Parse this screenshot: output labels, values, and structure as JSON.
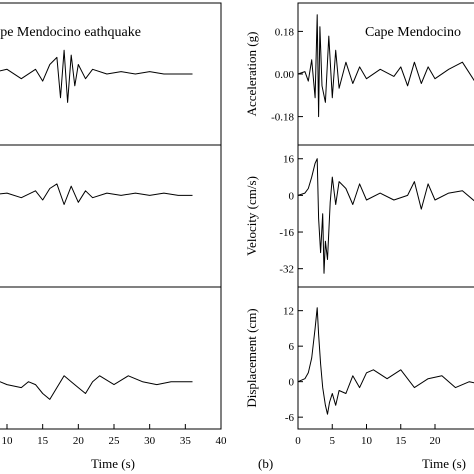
{
  "figure": {
    "panel_b_label": "(b)"
  },
  "chart_data": [
    {
      "id": "left_acceleration",
      "type": "line",
      "title": "ape Mendocino eathquake",
      "xlabel": "",
      "ylabel": "",
      "xlim": [
        7,
        40
      ],
      "ylim": [
        -0.3,
        0.3
      ],
      "yticks": [],
      "xticks": [],
      "series": [
        {
          "x": [
            7,
            10,
            12,
            14,
            15,
            16,
            17,
            17.5,
            18,
            18.5,
            19,
            19.5,
            20,
            21,
            22,
            24,
            26,
            28,
            30,
            32,
            34,
            36
          ],
          "y": [
            0,
            0.02,
            -0.02,
            0.02,
            -0.03,
            0.04,
            0.07,
            -0.1,
            0.1,
            -0.12,
            0.08,
            -0.05,
            0.04,
            -0.02,
            0.02,
            0,
            0.01,
            0,
            0.01,
            0,
            0,
            0
          ]
        }
      ]
    },
    {
      "id": "left_velocity",
      "type": "line",
      "title": "",
      "xlabel": "",
      "ylabel": "",
      "xlim": [
        7,
        40
      ],
      "ylim": [
        -40,
        22
      ],
      "yticks": [],
      "xticks": [],
      "series": [
        {
          "x": [
            7,
            10,
            12,
            14,
            15,
            16,
            17,
            18,
            19,
            20,
            21,
            22,
            24,
            26,
            28,
            30,
            32,
            34,
            36
          ],
          "y": [
            0,
            1,
            -1,
            2,
            -2,
            3,
            5,
            -4,
            4,
            -3,
            2,
            -1,
            1,
            0,
            1,
            0,
            1,
            0,
            0
          ]
        }
      ]
    },
    {
      "id": "left_displacement",
      "type": "line",
      "title": "",
      "xlabel": "Time (s)",
      "ylabel": "",
      "xlim": [
        7,
        40
      ],
      "ylim": [
        -8,
        16
      ],
      "yticks": [],
      "xticks": [
        10,
        15,
        20,
        25,
        30,
        35,
        40
      ],
      "series": [
        {
          "x": [
            7,
            9,
            10,
            12,
            13,
            14,
            15,
            16,
            17,
            18,
            19,
            20,
            21,
            22,
            23,
            25,
            27,
            29,
            31,
            33,
            34,
            36
          ],
          "y": [
            1,
            0,
            -0.5,
            -1,
            0,
            -0.5,
            -2,
            -3,
            -1,
            1,
            0,
            -1,
            -2,
            0,
            1,
            -0.5,
            1,
            0,
            -0.5,
            0,
            0,
            0
          ]
        }
      ]
    },
    {
      "id": "right_acceleration",
      "type": "line",
      "title": "Cape Mendocino",
      "xlabel": "",
      "ylabel": "Acceleration (g)",
      "xlim": [
        0,
        29
      ],
      "ylim": [
        -0.3,
        0.3
      ],
      "yticks": [
        0.18,
        0.0,
        -0.18
      ],
      "ytick_labels": [
        "0.18",
        "0.00",
        "-0.18"
      ],
      "xticks": [],
      "series": [
        {
          "x": [
            0,
            1,
            1.5,
            2,
            2.5,
            2.8,
            3,
            3.2,
            3.5,
            4,
            4.5,
            5,
            5.5,
            6,
            7,
            8,
            9,
            10,
            12,
            14,
            15,
            16,
            17,
            18,
            19,
            20,
            22,
            24,
            26,
            28,
            29
          ],
          "y": [
            0,
            0.01,
            -0.03,
            0.06,
            -0.1,
            0.25,
            -0.18,
            0.2,
            -0.05,
            -0.12,
            0.16,
            -0.1,
            0.1,
            -0.06,
            0.05,
            -0.04,
            0.03,
            -0.02,
            0.02,
            -0.01,
            0.03,
            -0.05,
            0.05,
            -0.04,
            0.03,
            -0.02,
            0.02,
            0.05,
            -0.04,
            0.01,
            0
          ]
        }
      ]
    },
    {
      "id": "right_velocity",
      "type": "line",
      "title": "",
      "xlabel": "",
      "ylabel": "Velocity (cm/s)",
      "xlim": [
        0,
        29
      ],
      "ylim": [
        -40,
        22
      ],
      "yticks": [
        16,
        0,
        -16,
        -32
      ],
      "ytick_labels": [
        "16",
        "0",
        "-16",
        "-32"
      ],
      "xticks": [],
      "series": [
        {
          "x": [
            0,
            1,
            1.5,
            2,
            2.5,
            2.8,
            3.0,
            3.3,
            3.6,
            3.8,
            4.0,
            4.3,
            4.7,
            5.0,
            5.5,
            6,
            7,
            8,
            9,
            10,
            12,
            14,
            16,
            17,
            18,
            19,
            20,
            22,
            24,
            26,
            28,
            29
          ],
          "y": [
            0,
            1,
            3,
            8,
            14,
            16,
            -10,
            -25,
            -8,
            -34,
            -20,
            -28,
            -3,
            8,
            -4,
            6,
            3,
            -4,
            5,
            -2,
            1,
            -2,
            0,
            6,
            -6,
            5,
            -2,
            1,
            2,
            -3,
            1,
            0
          ]
        }
      ]
    },
    {
      "id": "right_displacement",
      "type": "line",
      "title": "",
      "xlabel": "Time (s)",
      "ylabel": "Displacement (cm)",
      "xlim": [
        0,
        29
      ],
      "ylim": [
        -8,
        16
      ],
      "yticks": [
        12,
        6,
        0,
        -6
      ],
      "ytick_labels": [
        "12",
        "6",
        "0",
        "-6"
      ],
      "xticks": [
        0,
        5,
        10,
        15,
        20
      ],
      "series": [
        {
          "x": [
            0,
            1,
            1.5,
            2,
            2.5,
            2.8,
            3.0,
            3.3,
            3.6,
            4.0,
            4.3,
            4.6,
            5,
            5.5,
            6,
            7,
            8,
            9,
            10,
            11,
            13,
            15,
            17,
            19,
            21,
            23,
            25,
            27,
            29
          ],
          "y": [
            0,
            0.5,
            1.5,
            4,
            9,
            12.5,
            8,
            3,
            -1,
            -4,
            -5.5,
            -3.5,
            -2,
            -4,
            -1.5,
            -2,
            1,
            -1,
            1.5,
            2,
            0.5,
            2,
            -1,
            0.5,
            1,
            -1,
            0,
            -0.5,
            0
          ]
        }
      ]
    }
  ]
}
